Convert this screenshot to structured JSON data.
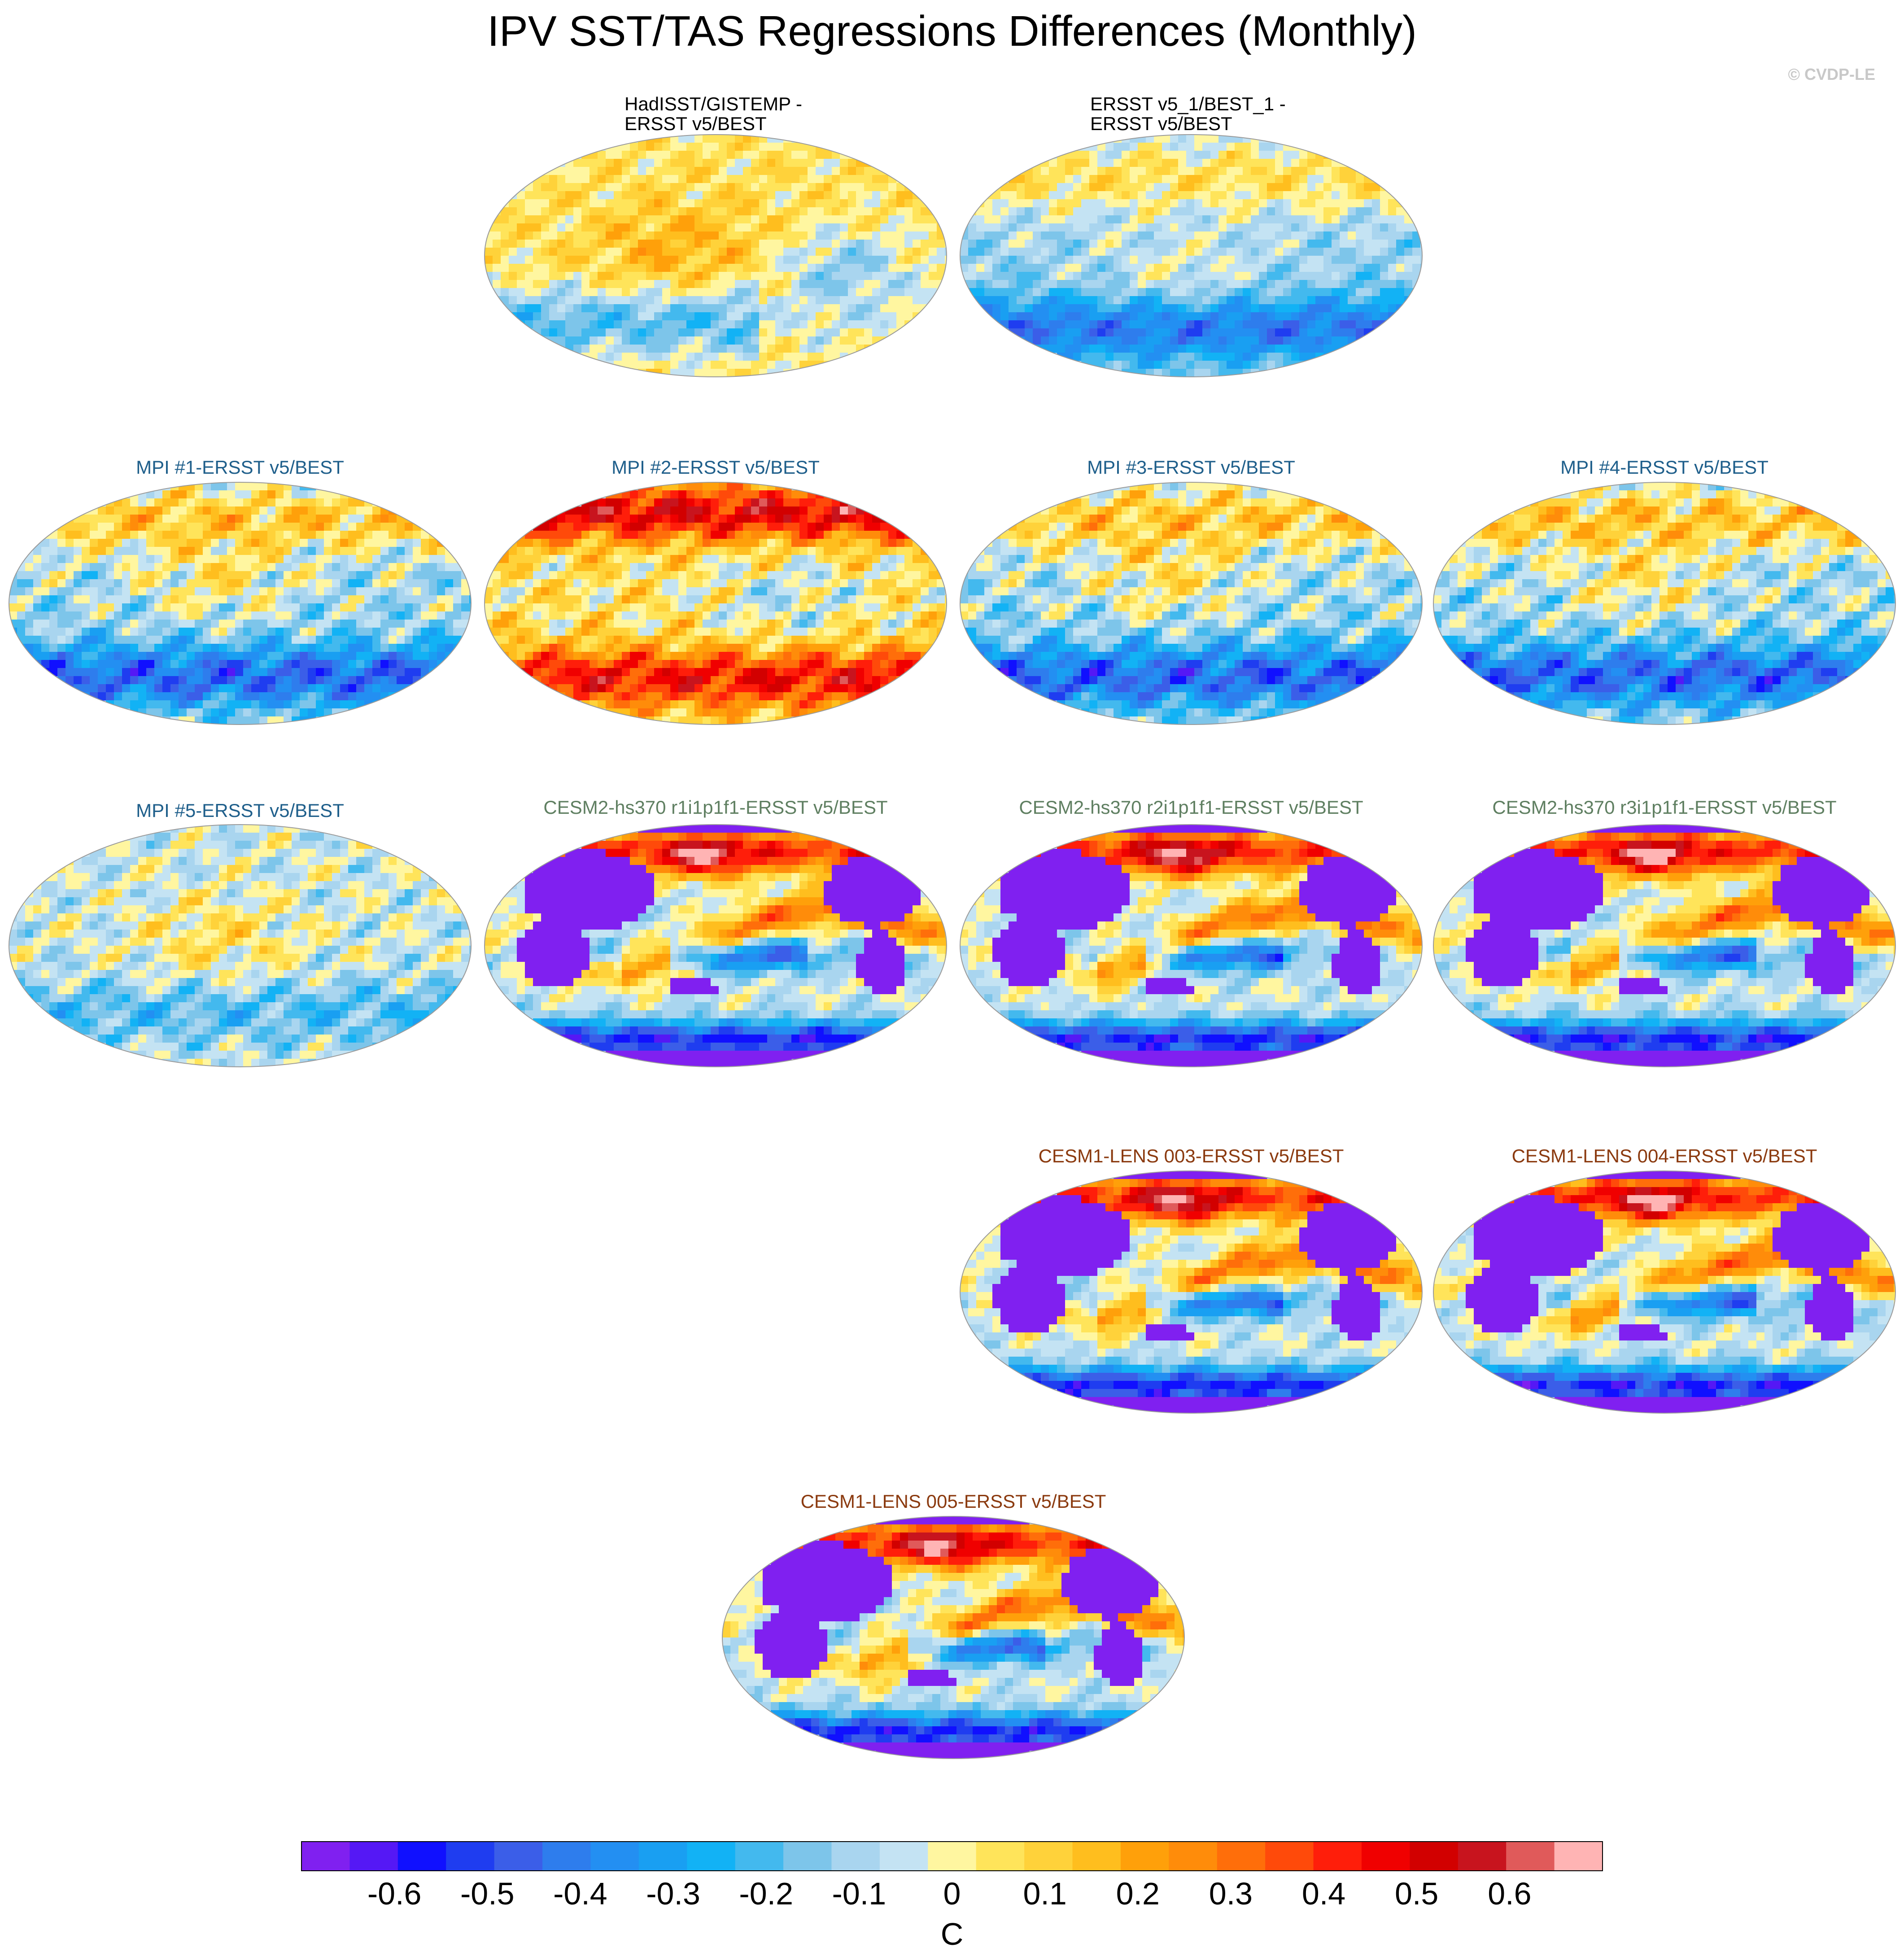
{
  "header": {
    "title": "IPV SST/TAS Regressions Differences (Monthly)",
    "watermark": "© CVDP-LE"
  },
  "panels": [
    {
      "id": "hadisst",
      "title_line1": "HadISST/GISTEMP -",
      "title_line2": "ERSST v5/BEST",
      "group": "obs",
      "pattern": "obs1"
    },
    {
      "id": "ersst51",
      "title_line1": "ERSST v5_1/BEST_1 -",
      "title_line2": "ERSST v5/BEST",
      "group": "obs",
      "pattern": "obs2"
    },
    {
      "id": "mpi1",
      "title_line1": "MPI #1-ERSST v5/BEST",
      "group": "mpi",
      "pattern": "mpi"
    },
    {
      "id": "mpi2",
      "title_line1": "MPI #2-ERSST v5/BEST",
      "group": "mpi",
      "pattern": "mpiwarm"
    },
    {
      "id": "mpi3",
      "title_line1": "MPI #3-ERSST v5/BEST",
      "group": "mpi",
      "pattern": "mpi"
    },
    {
      "id": "mpi4",
      "title_line1": "MPI #4-ERSST v5/BEST",
      "group": "mpi",
      "pattern": "mpi"
    },
    {
      "id": "mpi5",
      "title_line1": "MPI #5-ERSST v5/BEST",
      "group": "mpi",
      "pattern": "mpi5"
    },
    {
      "id": "cesm2r1",
      "title_line1": "CESM2-hs370 r1i1p1f1-ERSST v5/BEST",
      "group": "cesm2",
      "pattern": "cesm"
    },
    {
      "id": "cesm2r2",
      "title_line1": "CESM2-hs370 r2i1p1f1-ERSST v5/BEST",
      "group": "cesm2",
      "pattern": "cesm"
    },
    {
      "id": "cesm2r3",
      "title_line1": "CESM2-hs370 r3i1p1f1-ERSST v5/BEST",
      "group": "cesm2",
      "pattern": "cesm"
    },
    {
      "id": "lens003",
      "title_line1": "CESM1-LENS 003-ERSST v5/BEST",
      "group": "cesm1",
      "pattern": "cesm"
    },
    {
      "id": "lens004",
      "title_line1": "CESM1-LENS 004-ERSST v5/BEST",
      "group": "cesm1",
      "pattern": "cesm"
    },
    {
      "id": "lens005",
      "title_line1": "CESM1-LENS 005-ERSST v5/BEST",
      "group": "cesm1",
      "pattern": "cesm"
    }
  ],
  "chart_data": {
    "type": "heatmap",
    "title": "IPV SST/TAS Regressions Differences (Monthly)",
    "projection": "Robinson (global map)",
    "colorbar": {
      "label": "C",
      "tick_labels": [
        "-0.6",
        "-0.5",
        "-0.4",
        "-0.3",
        "-0.2",
        "-0.1",
        "0",
        "0.1",
        "0.2",
        "0.3",
        "0.4",
        "0.5",
        "0.6"
      ],
      "tick_values": [
        -0.6,
        -0.5,
        -0.4,
        -0.3,
        -0.2,
        -0.1,
        0,
        0.1,
        0.2,
        0.3,
        0.4,
        0.5,
        0.6
      ],
      "levels": [
        -0.65,
        -0.6,
        -0.55,
        -0.5,
        -0.45,
        -0.4,
        -0.35,
        -0.3,
        -0.25,
        -0.2,
        -0.15,
        -0.1,
        -0.05,
        0,
        0.05,
        0.1,
        0.15,
        0.2,
        0.25,
        0.3,
        0.35,
        0.4,
        0.45,
        0.5,
        0.55,
        0.6,
        0.65
      ],
      "colors": [
        "#8020f0",
        "#5518f5",
        "#1010ff",
        "#1f3df0",
        "#3b5ee8",
        "#2e7ded",
        "#238ff2",
        "#199ff2",
        "#12b2f5",
        "#43b9ee",
        "#7dc5ea",
        "#a9d5ef",
        "#c4e3f3",
        "#fff6a0",
        "#ffe45a",
        "#ffd23a",
        "#ffbe1e",
        "#ffa00a",
        "#ff8c0a",
        "#ff6e0a",
        "#ff4a0a",
        "#ff1e0a",
        "#f00000",
        "#d20000",
        "#c8141e",
        "#e05a5a",
        "#ffb4b4"
      ],
      "range": [
        -0.7,
        0.7
      ]
    }
  }
}
